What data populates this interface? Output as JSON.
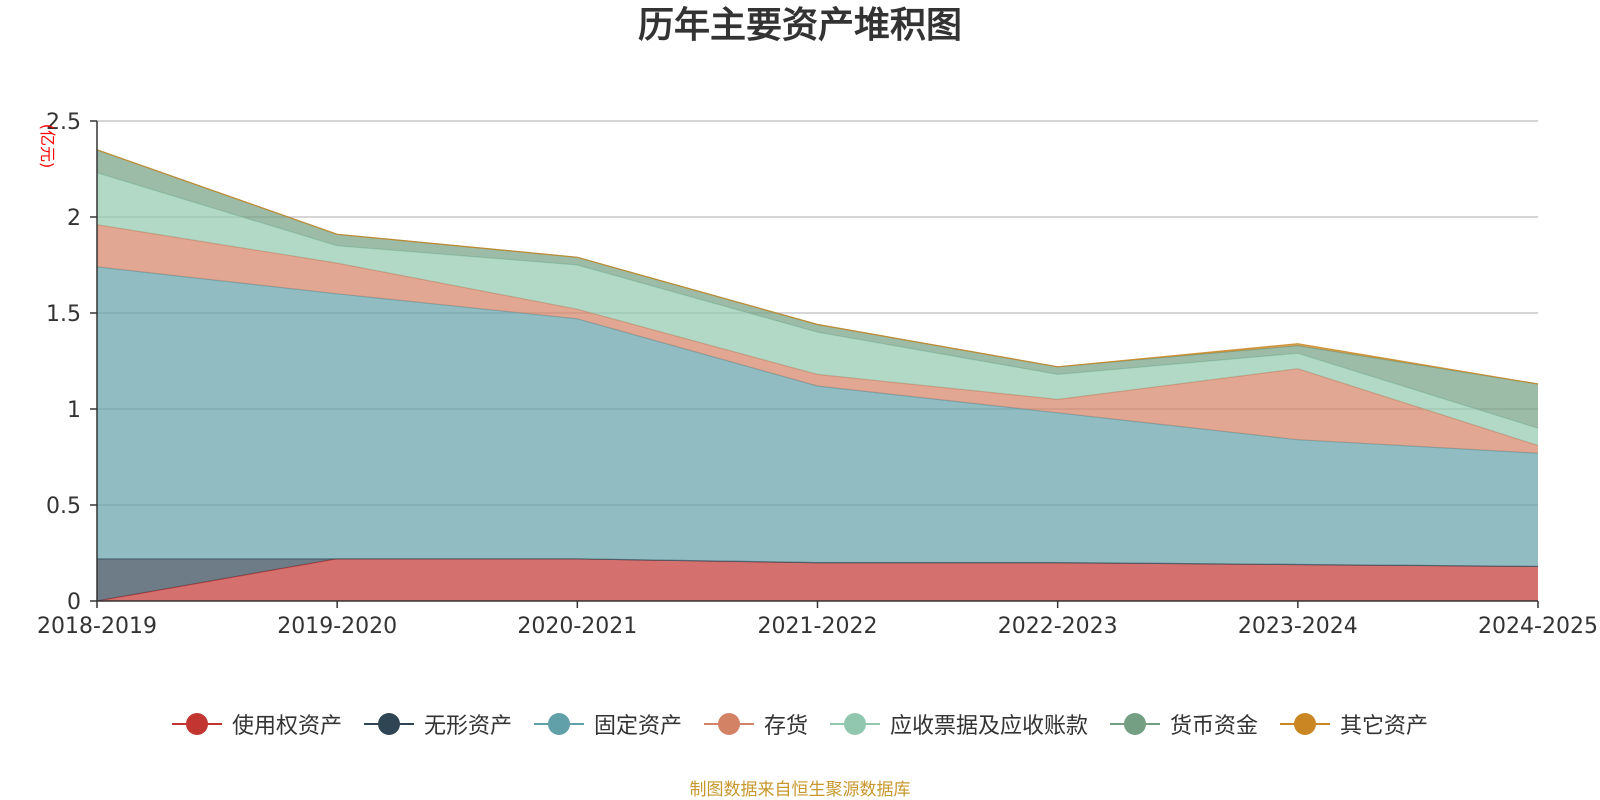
{
  "chart_data": {
    "type": "area",
    "stacked": true,
    "title": "历年主要资产堆积图",
    "ylabel": "(亿元)",
    "xlabel": "",
    "ylim": [
      0,
      2.5
    ],
    "yticks": [
      "0",
      "0.5",
      "1",
      "1.5",
      "2",
      "2.5"
    ],
    "grid": true,
    "legend_position": "bottom",
    "categories": [
      "2018-2019",
      "2019-2020",
      "2020-2021",
      "2021-2022",
      "2022-2023",
      "2023-2024",
      "2024-2025"
    ],
    "series": [
      {
        "name": "使用权资产",
        "color": "#c23531",
        "values": [
          0.0,
          0.22,
          0.22,
          0.2,
          0.2,
          0.19,
          0.18
        ]
      },
      {
        "name": "无形资产",
        "color": "#2f4554",
        "values": [
          0.22,
          0.0,
          0.0,
          0.0,
          0.0,
          0.0,
          0.0
        ]
      },
      {
        "name": "固定资产",
        "color": "#61a0a8",
        "values": [
          1.52,
          1.38,
          1.25,
          0.92,
          0.78,
          0.65,
          0.59
        ]
      },
      {
        "name": "存货",
        "color": "#d48265",
        "values": [
          0.22,
          0.16,
          0.05,
          0.06,
          0.07,
          0.37,
          0.04
        ]
      },
      {
        "name": "应收票据及应收账款",
        "color": "#91c7ae",
        "values": [
          0.27,
          0.09,
          0.23,
          0.22,
          0.13,
          0.08,
          0.09
        ]
      },
      {
        "name": "货币资金",
        "color": "#749f83",
        "values": [
          0.12,
          0.06,
          0.04,
          0.04,
          0.04,
          0.04,
          0.23
        ]
      },
      {
        "name": "其它资产",
        "color": "#ca8622",
        "values": [
          0.0,
          0.0,
          0.0,
          0.0,
          0.0,
          0.01,
          0.0
        ]
      }
    ],
    "source": "制图数据来自恒生聚源数据库"
  }
}
